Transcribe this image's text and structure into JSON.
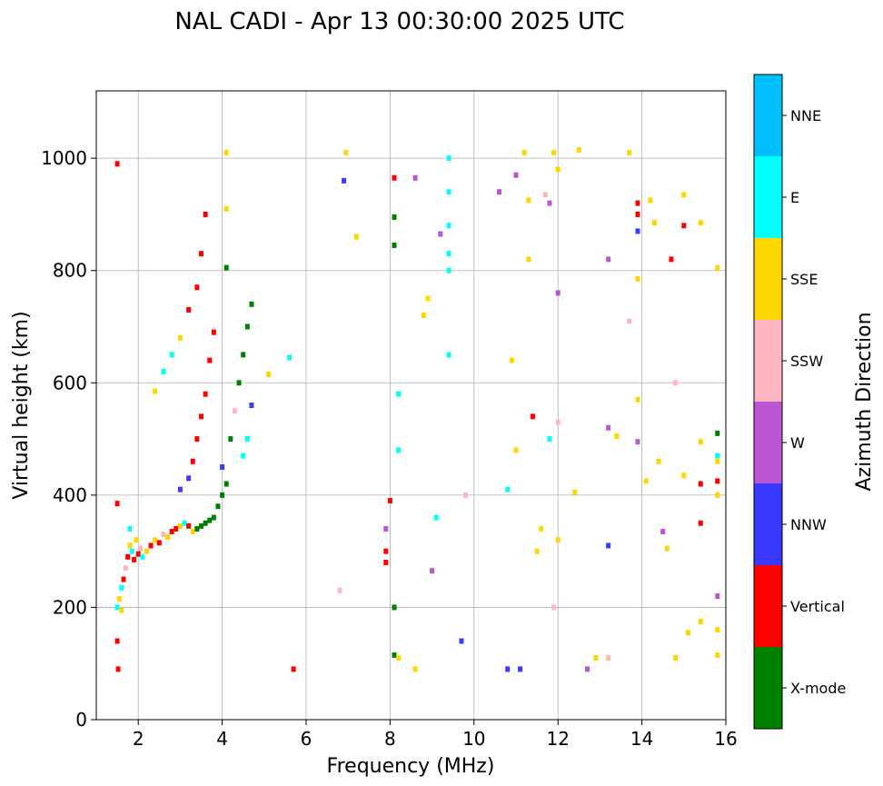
{
  "title": "NAL CADI - Apr 13 00:30:00 2025 UTC",
  "chart_data": {
    "type": "scatter",
    "xlabel": "Frequency (MHz)",
    "ylabel": "Virtual height (km)",
    "xlim": [
      1,
      16
    ],
    "ylim": [
      0,
      1120
    ],
    "xticks": [
      2,
      4,
      6,
      8,
      10,
      12,
      14,
      16
    ],
    "yticks": [
      0,
      200,
      400,
      600,
      800,
      1000
    ],
    "grid": true,
    "colorbar": {
      "label": "Azimuth Direction",
      "categories": [
        {
          "name": "X-mode",
          "color": "#008000"
        },
        {
          "name": "Vertical",
          "color": "#ff0000"
        },
        {
          "name": "NNW",
          "color": "#3a3aff"
        },
        {
          "name": "W",
          "color": "#ba55d3"
        },
        {
          "name": "SSW",
          "color": "#ffb6c1"
        },
        {
          "name": "SSE",
          "color": "#ffd700"
        },
        {
          "name": "E",
          "color": "#00ffff"
        },
        {
          "name": "NNE",
          "color": "#00bfff"
        }
      ]
    },
    "points": [
      [
        1.5,
        990,
        "Vertical"
      ],
      [
        1.5,
        385,
        "Vertical"
      ],
      [
        1.5,
        140,
        "Vertical"
      ],
      [
        1.52,
        90,
        "Vertical"
      ],
      [
        1.5,
        200,
        "E"
      ],
      [
        1.55,
        215,
        "SSE"
      ],
      [
        1.6,
        235,
        "E"
      ],
      [
        1.65,
        250,
        "Vertical"
      ],
      [
        1.6,
        195,
        "SSE"
      ],
      [
        1.7,
        270,
        "SSW"
      ],
      [
        1.75,
        290,
        "Vertical"
      ],
      [
        1.8,
        310,
        "SSE"
      ],
      [
        1.85,
        300,
        "E"
      ],
      [
        1.9,
        285,
        "Vertical"
      ],
      [
        1.95,
        320,
        "SSE"
      ],
      [
        2.0,
        295,
        "Vertical"
      ],
      [
        2.05,
        305,
        "SSW"
      ],
      [
        2.1,
        290,
        "E"
      ],
      [
        1.8,
        340,
        "E"
      ],
      [
        2.2,
        300,
        "SSE"
      ],
      [
        2.3,
        310,
        "Vertical"
      ],
      [
        2.4,
        320,
        "SSE"
      ],
      [
        2.5,
        315,
        "Vertical"
      ],
      [
        2.6,
        330,
        "SSW"
      ],
      [
        2.7,
        325,
        "SSE"
      ],
      [
        2.8,
        335,
        "Vertical"
      ],
      [
        2.9,
        340,
        "Vertical"
      ],
      [
        3.0,
        345,
        "SSE"
      ],
      [
        3.1,
        350,
        "E"
      ],
      [
        3.2,
        345,
        "Vertical"
      ],
      [
        3.3,
        335,
        "SSE"
      ],
      [
        3.4,
        340,
        "X-mode"
      ],
      [
        3.5,
        345,
        "X-mode"
      ],
      [
        3.6,
        350,
        "X-mode"
      ],
      [
        3.7,
        355,
        "X-mode"
      ],
      [
        3.8,
        360,
        "X-mode"
      ],
      [
        3.9,
        380,
        "X-mode"
      ],
      [
        4.0,
        400,
        "X-mode"
      ],
      [
        4.1,
        420,
        "X-mode"
      ],
      [
        3.0,
        410,
        "NNW"
      ],
      [
        3.2,
        430,
        "NNW"
      ],
      [
        3.3,
        460,
        "Vertical"
      ],
      [
        3.4,
        500,
        "Vertical"
      ],
      [
        3.5,
        540,
        "Vertical"
      ],
      [
        3.6,
        580,
        "Vertical"
      ],
      [
        3.7,
        640,
        "Vertical"
      ],
      [
        3.8,
        690,
        "Vertical"
      ],
      [
        3.2,
        730,
        "Vertical"
      ],
      [
        3.4,
        770,
        "Vertical"
      ],
      [
        3.5,
        830,
        "Vertical"
      ],
      [
        3.6,
        900,
        "Vertical"
      ],
      [
        3.0,
        680,
        "SSE"
      ],
      [
        2.4,
        585,
        "SSE"
      ],
      [
        2.6,
        620,
        "E"
      ],
      [
        2.8,
        650,
        "E"
      ],
      [
        4.0,
        450,
        "NNW"
      ],
      [
        4.2,
        500,
        "X-mode"
      ],
      [
        4.3,
        550,
        "SSW"
      ],
      [
        4.4,
        600,
        "X-mode"
      ],
      [
        4.5,
        650,
        "X-mode"
      ],
      [
        4.6,
        700,
        "X-mode"
      ],
      [
        4.7,
        740,
        "X-mode"
      ],
      [
        4.6,
        500,
        "E"
      ],
      [
        4.7,
        560,
        "NNW"
      ],
      [
        4.5,
        470,
        "E"
      ],
      [
        4.1,
        805,
        "X-mode"
      ],
      [
        4.1,
        910,
        "SSE"
      ],
      [
        4.1,
        1010,
        "SSE"
      ],
      [
        5.1,
        615,
        "SSE"
      ],
      [
        5.6,
        645,
        "E"
      ],
      [
        5.7,
        90,
        "Vertical"
      ],
      [
        6.8,
        230,
        "SSW"
      ],
      [
        6.9,
        960,
        "NNW"
      ],
      [
        6.95,
        1010,
        "SSE"
      ],
      [
        7.2,
        860,
        "SSE"
      ],
      [
        8.0,
        390,
        "Vertical"
      ],
      [
        7.9,
        340,
        "W"
      ],
      [
        7.9,
        300,
        "Vertical"
      ],
      [
        7.9,
        280,
        "Vertical"
      ],
      [
        8.1,
        895,
        "X-mode"
      ],
      [
        8.1,
        845,
        "X-mode"
      ],
      [
        8.1,
        965,
        "Vertical"
      ],
      [
        8.6,
        965,
        "W"
      ],
      [
        8.1,
        200,
        "X-mode"
      ],
      [
        8.1,
        115,
        "X-mode"
      ],
      [
        8.2,
        110,
        "SSE"
      ],
      [
        8.6,
        90,
        "SSE"
      ],
      [
        8.8,
        720,
        "SSE"
      ],
      [
        8.9,
        750,
        "SSE"
      ],
      [
        8.2,
        580,
        "E"
      ],
      [
        8.2,
        480,
        "E"
      ],
      [
        9.0,
        265,
        "W"
      ],
      [
        9.1,
        360,
        "E"
      ],
      [
        9.2,
        865,
        "W"
      ],
      [
        9.4,
        1000,
        "E"
      ],
      [
        9.4,
        940,
        "E"
      ],
      [
        9.4,
        880,
        "E"
      ],
      [
        9.4,
        830,
        "E"
      ],
      [
        9.4,
        800,
        "E"
      ],
      [
        9.4,
        650,
        "E"
      ],
      [
        9.7,
        140,
        "NNW"
      ],
      [
        9.8,
        400,
        "SSW"
      ],
      [
        10.6,
        940,
        "W"
      ],
      [
        10.8,
        90,
        "NNW"
      ],
      [
        10.8,
        410,
        "E"
      ],
      [
        10.9,
        640,
        "SSE"
      ],
      [
        11.0,
        970,
        "W"
      ],
      [
        11.0,
        480,
        "SSE"
      ],
      [
        11.1,
        90,
        "NNW"
      ],
      [
        11.2,
        1010,
        "SSE"
      ],
      [
        11.3,
        925,
        "SSE"
      ],
      [
        11.3,
        820,
        "SSE"
      ],
      [
        11.4,
        540,
        "Vertical"
      ],
      [
        11.5,
        300,
        "SSE"
      ],
      [
        11.6,
        340,
        "SSE"
      ],
      [
        11.7,
        935,
        "SSW"
      ],
      [
        11.8,
        920,
        "W"
      ],
      [
        11.8,
        500,
        "E"
      ],
      [
        11.9,
        1010,
        "SSE"
      ],
      [
        12.0,
        980,
        "SSE"
      ],
      [
        12.0,
        760,
        "W"
      ],
      [
        12.0,
        530,
        "SSW"
      ],
      [
        12.0,
        320,
        "SSE"
      ],
      [
        11.9,
        200,
        "SSW"
      ],
      [
        12.4,
        405,
        "SSE"
      ],
      [
        12.5,
        1015,
        "SSE"
      ],
      [
        12.7,
        90,
        "W"
      ],
      [
        12.9,
        110,
        "SSE"
      ],
      [
        13.2,
        110,
        "SSW"
      ],
      [
        13.2,
        310,
        "NNW"
      ],
      [
        13.2,
        520,
        "W"
      ],
      [
        13.2,
        820,
        "W"
      ],
      [
        13.4,
        505,
        "SSE"
      ],
      [
        13.7,
        710,
        "SSW"
      ],
      [
        13.7,
        1010,
        "SSE"
      ],
      [
        13.9,
        920,
        "Vertical"
      ],
      [
        13.9,
        900,
        "Vertical"
      ],
      [
        13.9,
        870,
        "NNW"
      ],
      [
        13.9,
        785,
        "SSE"
      ],
      [
        13.9,
        570,
        "SSE"
      ],
      [
        13.9,
        495,
        "W"
      ],
      [
        14.1,
        425,
        "SSE"
      ],
      [
        14.2,
        925,
        "SSE"
      ],
      [
        14.3,
        885,
        "SSE"
      ],
      [
        14.4,
        460,
        "SSE"
      ],
      [
        14.5,
        335,
        "W"
      ],
      [
        14.6,
        305,
        "SSE"
      ],
      [
        14.7,
        820,
        "Vertical"
      ],
      [
        14.8,
        110,
        "SSE"
      ],
      [
        14.8,
        600,
        "SSW"
      ],
      [
        15.0,
        880,
        "Vertical"
      ],
      [
        15.0,
        935,
        "SSE"
      ],
      [
        15.0,
        435,
        "SSE"
      ],
      [
        15.1,
        155,
        "SSE"
      ],
      [
        15.4,
        885,
        "SSE"
      ],
      [
        15.4,
        495,
        "SSE"
      ],
      [
        15.4,
        420,
        "Vertical"
      ],
      [
        15.4,
        350,
        "Vertical"
      ],
      [
        15.4,
        175,
        "SSE"
      ],
      [
        15.8,
        805,
        "SSE"
      ],
      [
        15.8,
        510,
        "X-mode"
      ],
      [
        15.8,
        470,
        "E"
      ],
      [
        15.8,
        460,
        "SSE"
      ],
      [
        15.8,
        425,
        "Vertical"
      ],
      [
        15.8,
        400,
        "SSE"
      ],
      [
        15.8,
        220,
        "W"
      ],
      [
        15.8,
        160,
        "SSE"
      ],
      [
        15.8,
        115,
        "SSE"
      ]
    ]
  }
}
